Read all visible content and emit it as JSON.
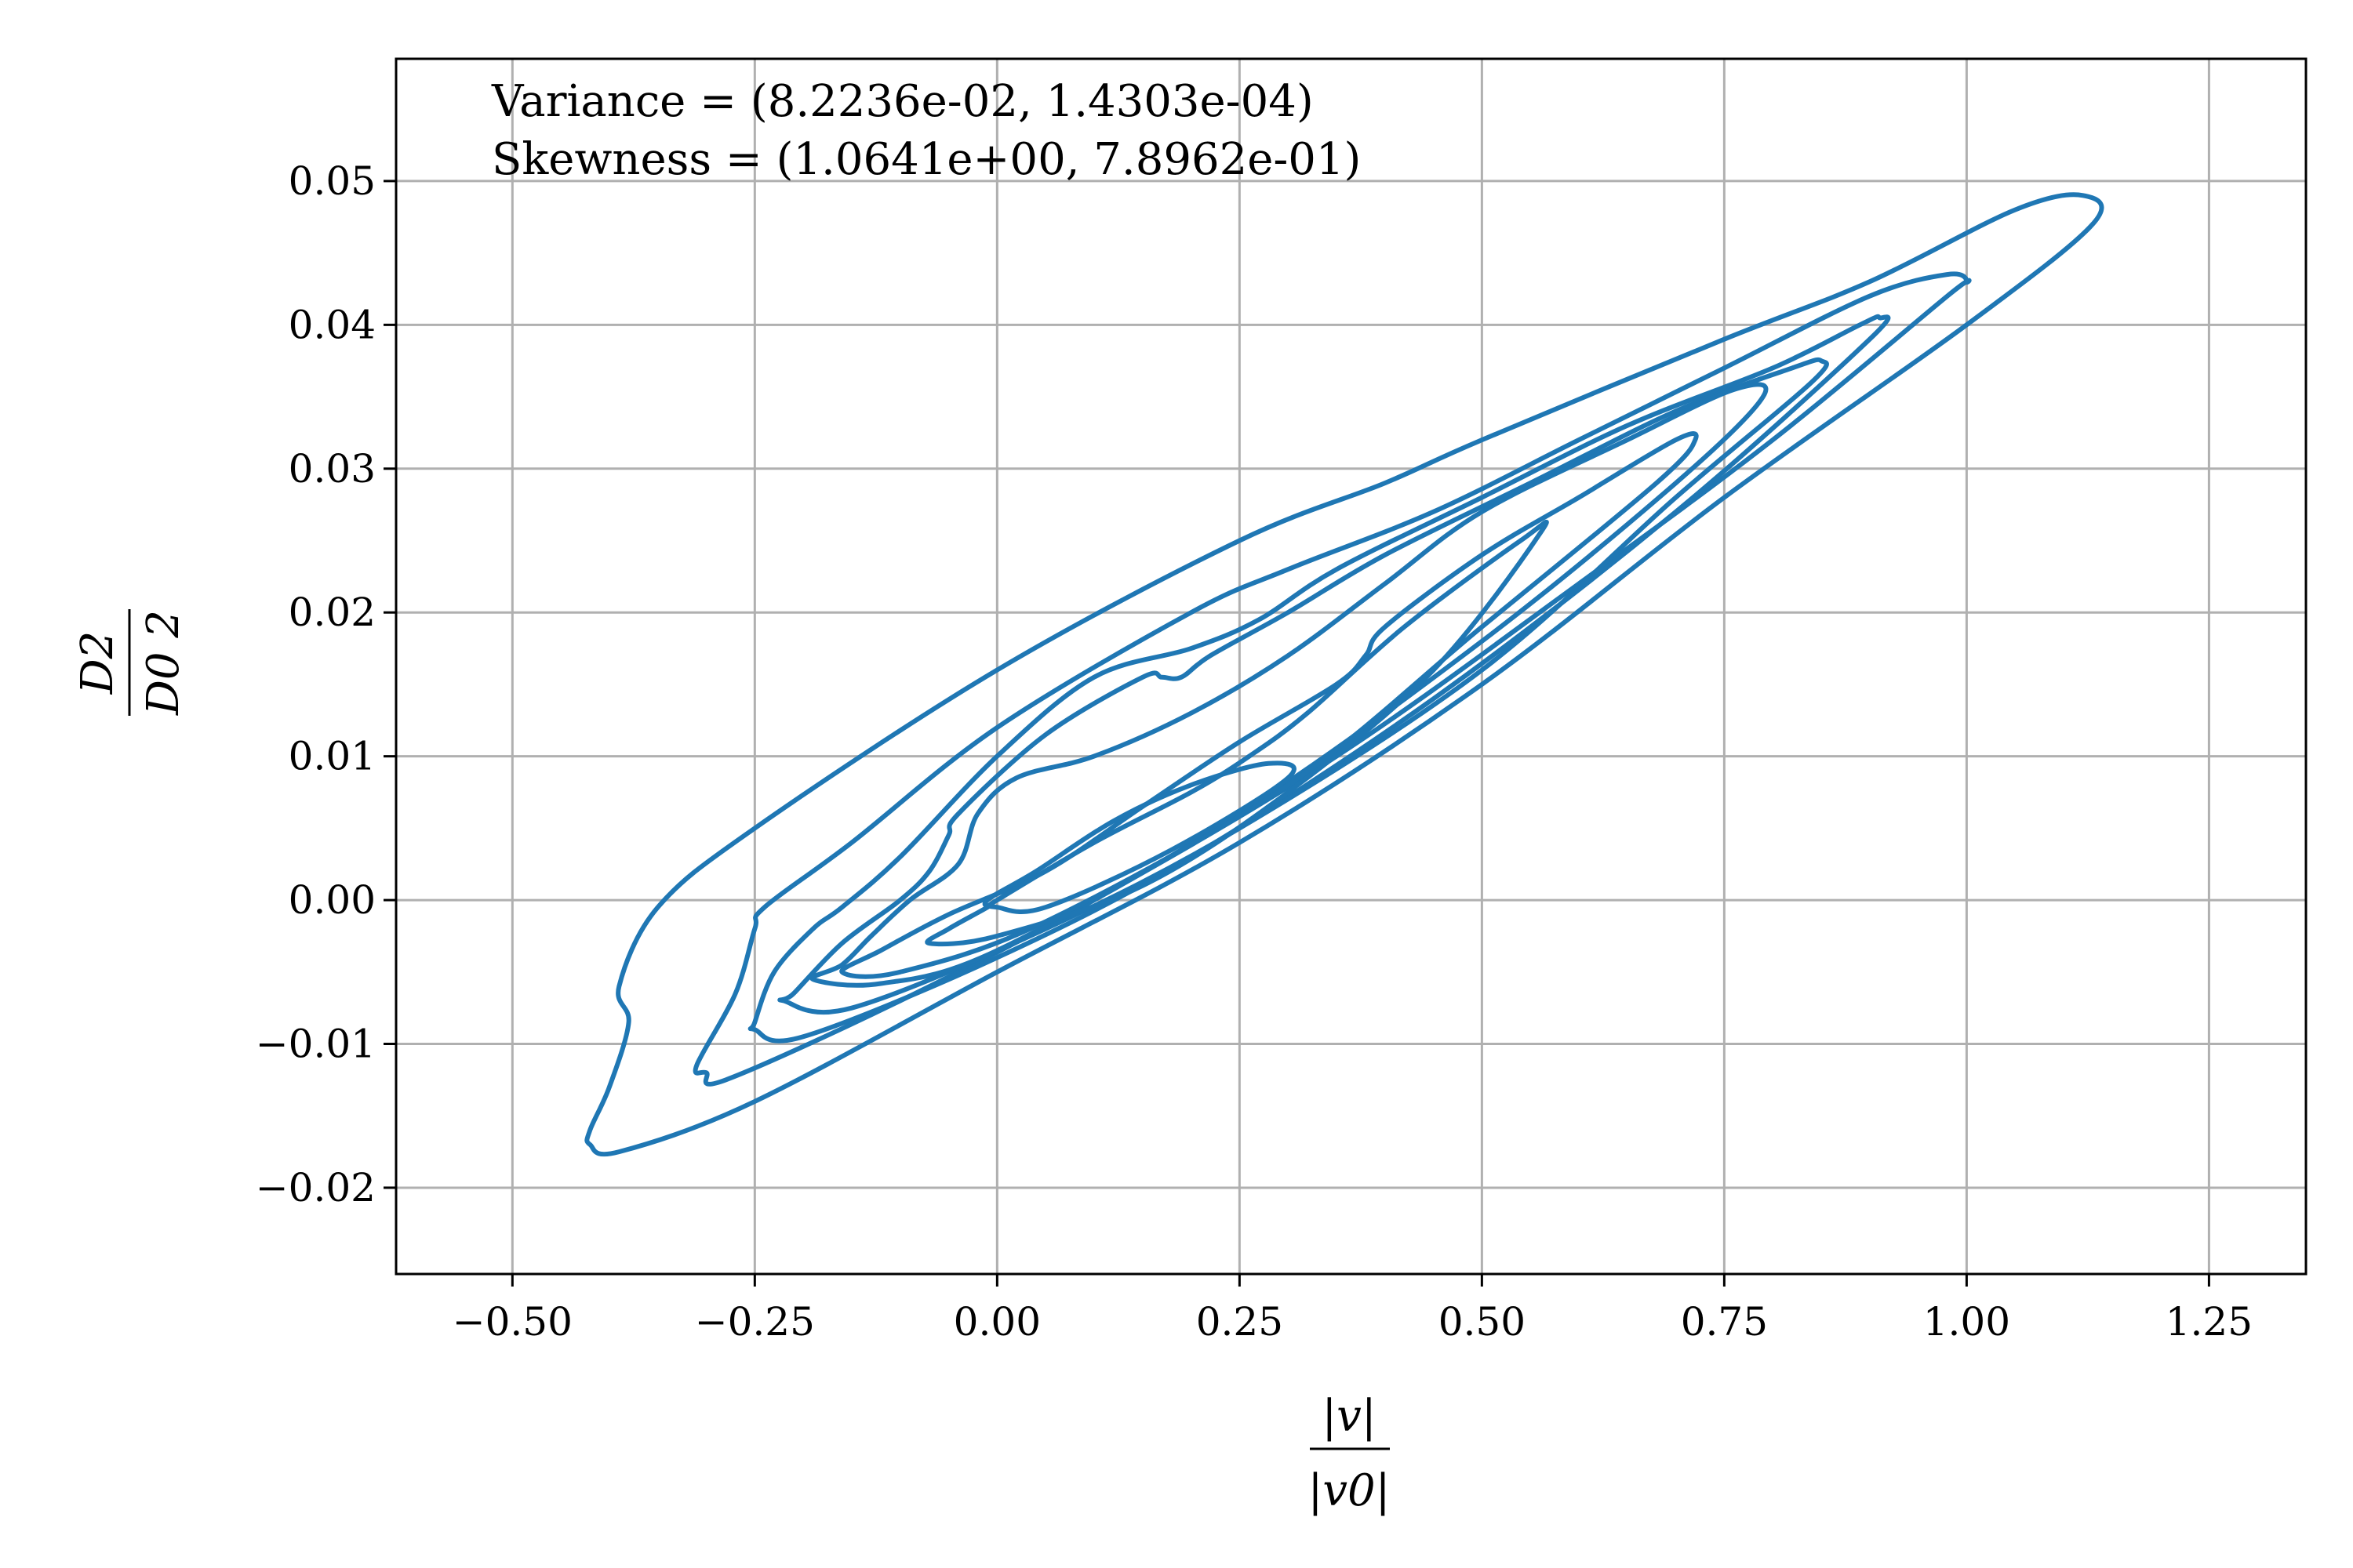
{
  "chart_data": {
    "type": "contour",
    "annotations": [
      "Variance = (8.2236e-02, 1.4303e-04)",
      "Skewness = (1.0641e+00, 7.8962e-01)"
    ],
    "xlabel": {
      "numerator": "|v|",
      "denominator": "|v0|"
    },
    "ylabel": {
      "numerator": "D2",
      "denominator": "D0 2"
    },
    "xlim": [
      -0.62,
      1.35
    ],
    "ylim": [
      -0.026,
      0.0585
    ],
    "x_ticks": [
      -0.5,
      -0.25,
      0.0,
      0.25,
      0.5,
      0.75,
      1.0,
      1.25
    ],
    "x_tick_labels": [
      "−0.50",
      "−0.25",
      "0.00",
      "0.25",
      "0.50",
      "0.75",
      "1.00",
      "1.25"
    ],
    "y_ticks": [
      -0.02,
      -0.01,
      0.0,
      0.01,
      0.02,
      0.03,
      0.04,
      0.05
    ],
    "y_tick_labels": [
      "−0.02",
      "−0.01",
      "0.00",
      "0.01",
      "0.02",
      "0.03",
      "0.04",
      "0.05"
    ],
    "grid": true,
    "line_color": "#1f77b4",
    "contours": [
      [
        [
          -0.42,
          -0.017
        ],
        [
          -0.39,
          -0.0175
        ],
        [
          -0.25,
          -0.014
        ],
        [
          0.0,
          -0.005
        ],
        [
          0.25,
          0.004
        ],
        [
          0.5,
          0.015
        ],
        [
          0.75,
          0.028
        ],
        [
          1.0,
          0.04
        ],
        [
          1.13,
          0.047
        ],
        [
          1.12,
          0.049
        ],
        [
          1.05,
          0.048
        ],
        [
          0.9,
          0.043
        ],
        [
          0.75,
          0.039
        ],
        [
          0.5,
          0.032
        ],
        [
          0.4,
          0.029
        ],
        [
          0.25,
          0.025
        ],
        [
          0.0,
          0.016
        ],
        [
          -0.25,
          0.005
        ],
        [
          -0.35,
          -0.0005
        ],
        [
          -0.39,
          -0.006
        ],
        [
          -0.38,
          -0.0085
        ],
        [
          -0.4,
          -0.013
        ],
        [
          -0.42,
          -0.016
        ]
      ],
      [
        [
          -0.3,
          -0.012
        ],
        [
          -0.28,
          -0.0125
        ],
        [
          -0.1,
          -0.007
        ],
        [
          0.1,
          0.0
        ],
        [
          0.35,
          0.01
        ],
        [
          0.6,
          0.022
        ],
        [
          0.8,
          0.032
        ],
        [
          0.98,
          0.042
        ],
        [
          1.0,
          0.043
        ],
        [
          0.98,
          0.0435
        ],
        [
          0.9,
          0.042
        ],
        [
          0.75,
          0.037
        ],
        [
          0.6,
          0.032
        ],
        [
          0.45,
          0.027
        ],
        [
          0.3,
          0.023
        ],
        [
          0.2,
          0.02
        ],
        [
          0.0,
          0.012
        ],
        [
          -0.15,
          0.004
        ],
        [
          -0.24,
          -0.0005
        ],
        [
          -0.25,
          -0.002
        ],
        [
          -0.27,
          -0.0065
        ],
        [
          -0.31,
          -0.0115
        ]
      ],
      [
        [
          -0.25,
          -0.009
        ],
        [
          -0.2,
          -0.0095
        ],
        [
          0.0,
          -0.004
        ],
        [
          0.2,
          0.003
        ],
        [
          0.45,
          0.014
        ],
        [
          0.7,
          0.027
        ],
        [
          0.9,
          0.039
        ],
        [
          0.91,
          0.0405
        ],
        [
          0.89,
          0.04
        ],
        [
          0.8,
          0.037
        ],
        [
          0.65,
          0.033
        ],
        [
          0.5,
          0.028
        ],
        [
          0.35,
          0.023
        ],
        [
          0.27,
          0.0195
        ],
        [
          0.2,
          0.0175
        ],
        [
          0.1,
          0.0155
        ],
        [
          0.0,
          0.01
        ],
        [
          -0.1,
          0.003
        ],
        [
          -0.16,
          -0.0005
        ],
        [
          -0.19,
          -0.002
        ],
        [
          -0.23,
          -0.005
        ],
        [
          -0.25,
          -0.0085
        ]
      ],
      [
        [
          -0.22,
          -0.007
        ],
        [
          -0.15,
          -0.0075
        ],
        [
          0.05,
          -0.002
        ],
        [
          0.25,
          0.005
        ],
        [
          0.5,
          0.016
        ],
        [
          0.7,
          0.028
        ],
        [
          0.84,
          0.036
        ],
        [
          0.85,
          0.0375
        ],
        [
          0.82,
          0.037
        ],
        [
          0.7,
          0.034
        ],
        [
          0.55,
          0.029
        ],
        [
          0.4,
          0.024
        ],
        [
          0.3,
          0.02
        ],
        [
          0.22,
          0.017
        ],
        [
          0.19,
          0.0155
        ],
        [
          0.17,
          0.0155
        ],
        [
          0.15,
          0.0155
        ],
        [
          0.05,
          0.0115
        ],
        [
          -0.04,
          0.006
        ],
        [
          -0.05,
          0.0045
        ],
        [
          -0.07,
          0.002
        ],
        [
          -0.1,
          0.0
        ],
        [
          -0.16,
          -0.003
        ],
        [
          -0.21,
          -0.0065
        ]
      ],
      [
        [
          -0.19,
          -0.0055
        ],
        [
          -0.12,
          -0.0058
        ],
        [
          0.0,
          -0.0035
        ],
        [
          0.25,
          0.006
        ],
        [
          0.5,
          0.018
        ],
        [
          0.7,
          0.029
        ],
        [
          0.79,
          0.035
        ],
        [
          0.76,
          0.0355
        ],
        [
          0.65,
          0.032
        ],
        [
          0.5,
          0.027
        ],
        [
          0.4,
          0.022
        ],
        [
          0.3,
          0.017
        ],
        [
          0.2,
          0.013
        ],
        [
          0.1,
          0.01
        ],
        [
          0.02,
          0.0085
        ],
        [
          -0.02,
          0.006
        ],
        [
          -0.04,
          0.0025
        ],
        [
          -0.09,
          0.0
        ],
        [
          -0.13,
          -0.0025
        ],
        [
          -0.16,
          -0.0045
        ]
      ],
      [
        [
          -0.16,
          -0.005
        ],
        [
          -0.1,
          -0.005
        ],
        [
          0.05,
          -0.0015
        ],
        [
          0.3,
          0.008
        ],
        [
          0.5,
          0.019
        ],
        [
          0.68,
          0.029
        ],
        [
          0.72,
          0.032
        ],
        [
          0.7,
          0.032
        ],
        [
          0.6,
          0.028
        ],
        [
          0.5,
          0.024
        ],
        [
          0.4,
          0.019
        ],
        [
          0.38,
          0.017
        ],
        [
          0.35,
          0.015
        ],
        [
          0.25,
          0.011
        ],
        [
          0.15,
          0.0065
        ],
        [
          0.05,
          0.002
        ],
        [
          -0.05,
          -0.001
        ],
        [
          -0.12,
          -0.0035
        ]
      ],
      [
        [
          -0.07,
          -0.003
        ],
        [
          0.0,
          -0.0025
        ],
        [
          0.15,
          0.001
        ],
        [
          0.3,
          0.0075
        ],
        [
          0.45,
          0.016
        ],
        [
          0.56,
          0.0255
        ],
        [
          0.54,
          0.025
        ],
        [
          0.42,
          0.019
        ],
        [
          0.32,
          0.013
        ],
        [
          0.26,
          0.01
        ],
        [
          0.2,
          0.0075
        ],
        [
          0.1,
          0.004
        ],
        [
          0.0,
          0.0
        ],
        [
          -0.01,
          -0.0005
        ],
        [
          -0.05,
          -0.002
        ]
      ],
      [
        [
          0.0,
          -0.0005
        ],
        [
          0.05,
          -0.0005
        ],
        [
          0.18,
          0.0035
        ],
        [
          0.3,
          0.0085
        ],
        [
          0.28,
          0.0095
        ],
        [
          0.2,
          0.008
        ],
        [
          0.12,
          0.0055
        ],
        [
          0.04,
          0.002
        ],
        [
          -0.01,
          0.0
        ]
      ]
    ]
  }
}
